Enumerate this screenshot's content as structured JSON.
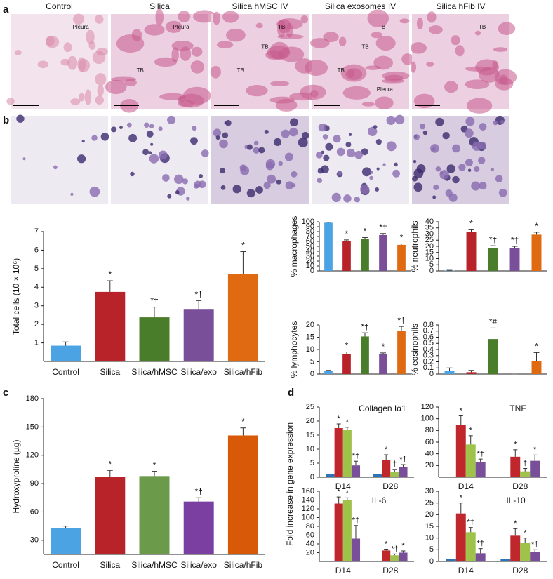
{
  "panel_labels": [
    "a",
    "b",
    "c",
    "d"
  ],
  "histology": [
    {
      "label": "Control",
      "annotations": [
        "Pleura"
      ]
    },
    {
      "label": "Silica",
      "annotations": [
        "Pleura",
        "TB"
      ]
    },
    {
      "label": "Silica hMSC IV",
      "annotations": [
        "TB",
        "TB",
        "TB"
      ]
    },
    {
      "label": "Silica exosomes IV",
      "annotations": [
        "TB",
        "TB",
        "TB",
        "Pleura"
      ]
    },
    {
      "label": "Silica hFib IV",
      "annotations": [
        "TB"
      ]
    }
  ],
  "gene_expression_ylabel": "Fold increase in gene expression",
  "chart_data": [
    {
      "type": "bar",
      "ylabel": "Total cells (10 × 10⁶)",
      "categories": [
        "Control",
        "Silica",
        "Silica/hMSC",
        "Silica/exo",
        "Silica/hFib"
      ],
      "values": [
        0.85,
        3.75,
        2.38,
        2.83,
        4.72
      ],
      "errors": [
        0.2,
        0.6,
        0.55,
        0.45,
        1.2
      ],
      "annotations": [
        "",
        "*",
        "*†",
        "*†",
        "*"
      ],
      "colors": [
        "#4ba3e3",
        "#b8232a",
        "#4a7d2a",
        "#7a4f9a",
        "#e06a12"
      ],
      "ylim": [
        0,
        7
      ],
      "yticks": [
        1,
        2,
        3,
        4,
        5,
        6,
        7
      ]
    },
    {
      "type": "bar",
      "ylabel": "% macrophages",
      "categories": [
        null,
        null,
        null,
        null,
        null
      ],
      "values": [
        98,
        60,
        65,
        73,
        53
      ],
      "errors": [
        1,
        3,
        3,
        3,
        2
      ],
      "annotations": [
        "",
        "*",
        "*",
        "*†",
        "*"
      ],
      "colors": [
        "#4ba3e3",
        "#b8232a",
        "#4a7d2a",
        "#7a4f9a",
        "#e06a12"
      ],
      "ylim": [
        0,
        100
      ],
      "yticks": [
        0,
        10,
        20,
        30,
        40,
        50,
        60,
        70,
        80,
        90,
        100
      ]
    },
    {
      "type": "bar",
      "ylabel": "% neutrophils",
      "categories": [
        null,
        null,
        null,
        null,
        null
      ],
      "values": [
        0.3,
        32,
        18.5,
        18.5,
        29.5
      ],
      "errors": [
        0.2,
        1.5,
        2,
        1.5,
        2
      ],
      "annotations": [
        "",
        "*",
        "*†",
        "*†",
        "*"
      ],
      "colors": [
        "#4ba3e3",
        "#b8232a",
        "#4a7d2a",
        "#7a4f9a",
        "#e06a12"
      ],
      "ylim": [
        0,
        40
      ],
      "yticks": [
        0,
        5,
        10,
        15,
        20,
        25,
        30,
        35,
        40
      ]
    },
    {
      "type": "bar",
      "ylabel": "% lymphocytes",
      "categories": [
        null,
        null,
        null,
        null,
        null
      ],
      "values": [
        1.2,
        8.2,
        15.3,
        8,
        17.6
      ],
      "errors": [
        0.3,
        0.8,
        1.5,
        0.6,
        1.8
      ],
      "annotations": [
        "",
        "*",
        "*†",
        "*",
        "*†"
      ],
      "colors": [
        "#4ba3e3",
        "#b8232a",
        "#4a7d2a",
        "#7a4f9a",
        "#e06a12"
      ],
      "ylim": [
        0,
        20
      ],
      "yticks": [
        0,
        5,
        10,
        15,
        20
      ]
    },
    {
      "type": "bar",
      "ylabel": "% eosinophils",
      "categories": [
        null,
        null,
        null,
        null,
        null
      ],
      "values": [
        0.05,
        0.03,
        0.57,
        0,
        0.21
      ],
      "errors": [
        0.05,
        0.03,
        0.18,
        0,
        0.14
      ],
      "annotations": [
        "",
        "",
        "*#",
        "",
        "*"
      ],
      "colors": [
        "#4ba3e3",
        "#b8232a",
        "#4a7d2a",
        "#7a4f9a",
        "#e06a12"
      ],
      "ylim": [
        0,
        0.8
      ],
      "yticks": [
        0,
        0.1,
        0.2,
        0.3,
        0.4,
        0.5,
        0.6,
        0.7,
        0.8
      ]
    },
    {
      "type": "bar",
      "ylabel": "Hydroxyproline (µg)",
      "categories": [
        "Control",
        "Silica",
        "Silica/hMSC",
        "Silica/exo",
        "Silica/hFib"
      ],
      "values": [
        43,
        97,
        98,
        71,
        141
      ],
      "errors": [
        2,
        7,
        5,
        4,
        8
      ],
      "annotations": [
        "",
        "*",
        "*",
        "*†",
        "*"
      ],
      "colors": [
        "#4ba3e3",
        "#b8232a",
        "#6a9a4a",
        "#7a3fa0",
        "#d85a08"
      ],
      "ylim": [
        15,
        180
      ],
      "yticks": [
        30,
        60,
        90,
        120,
        150,
        180
      ]
    },
    {
      "type": "grouped_bar",
      "title": "Collagen Iα1",
      "categories": [
        "D14",
        "D28"
      ],
      "ylim": [
        0,
        25
      ],
      "yticks": [
        0,
        5,
        10,
        15,
        20,
        25
      ],
      "series": [
        {
          "color": "#2e74b5",
          "values": [
            1,
            1
          ],
          "errors": [
            0,
            0
          ],
          "annotations": [
            "",
            ""
          ]
        },
        {
          "color": "#c0272d",
          "values": [
            17.5,
            6
          ],
          "errors": [
            1.5,
            2
          ],
          "annotations": [
            "*",
            "*"
          ]
        },
        {
          "color": "#9ec24a",
          "values": [
            16.8,
            1.8
          ],
          "errors": [
            1,
            1
          ],
          "annotations": [
            "*",
            "†"
          ]
        },
        {
          "color": "#7a4f9a",
          "values": [
            4.2,
            3.5
          ],
          "errors": [
            1.5,
            1
          ],
          "annotations": [
            "*†",
            "*†"
          ]
        }
      ]
    },
    {
      "type": "grouped_bar",
      "title": "TNF",
      "categories": [
        "D14",
        "D28"
      ],
      "ylim": [
        0,
        120
      ],
      "yticks": [
        20,
        40,
        60,
        80,
        100,
        120
      ],
      "series": [
        {
          "color": "#2e74b5",
          "values": [
            1,
            1
          ],
          "errors": [
            0,
            0
          ],
          "annotations": [
            "",
            ""
          ]
        },
        {
          "color": "#c0272d",
          "values": [
            90,
            35
          ],
          "errors": [
            15,
            12
          ],
          "annotations": [
            "*",
            "*"
          ]
        },
        {
          "color": "#9ec24a",
          "values": [
            56,
            10
          ],
          "errors": [
            15,
            5
          ],
          "annotations": [
            "*",
            "†"
          ]
        },
        {
          "color": "#7a4f9a",
          "values": [
            26,
            28
          ],
          "errors": [
            5,
            10
          ],
          "annotations": [
            "*†",
            "*"
          ]
        }
      ]
    },
    {
      "type": "grouped_bar",
      "title": "IL-6",
      "categories": [
        "D14",
        "D28"
      ],
      "ylim": [
        0,
        160
      ],
      "yticks": [
        20,
        40,
        60,
        80,
        100,
        120,
        140,
        160
      ],
      "series": [
        {
          "color": "#2e74b5",
          "values": [
            1,
            1
          ],
          "errors": [
            0,
            0
          ],
          "annotations": [
            "",
            ""
          ]
        },
        {
          "color": "#c0272d",
          "values": [
            132,
            25
          ],
          "errors": [
            15,
            3
          ],
          "annotations": [
            "*",
            "*"
          ]
        },
        {
          "color": "#9ec24a",
          "values": [
            140,
            14
          ],
          "errors": [
            5,
            3
          ],
          "annotations": [
            "*",
            "*†"
          ]
        },
        {
          "color": "#7a4f9a",
          "values": [
            52,
            20
          ],
          "errors": [
            30,
            4
          ],
          "annotations": [
            "*†",
            "*"
          ]
        }
      ]
    },
    {
      "type": "grouped_bar",
      "title": "IL-10",
      "categories": [
        "D14",
        "D28"
      ],
      "ylim": [
        0,
        30
      ],
      "yticks": [
        0,
        5,
        10,
        15,
        20,
        25,
        30
      ],
      "series": [
        {
          "color": "#2e74b5",
          "values": [
            1,
            1
          ],
          "errors": [
            0,
            0
          ],
          "annotations": [
            "",
            ""
          ]
        },
        {
          "color": "#c0272d",
          "values": [
            20.5,
            11
          ],
          "errors": [
            4.5,
            3
          ],
          "annotations": [
            "*",
            "*"
          ]
        },
        {
          "color": "#9ec24a",
          "values": [
            12.5,
            8
          ],
          "errors": [
            2,
            2
          ],
          "annotations": [
            "*†",
            "*"
          ]
        },
        {
          "color": "#7a4f9a",
          "values": [
            3.5,
            4
          ],
          "errors": [
            2,
            1
          ],
          "annotations": [
            "*†",
            "*†"
          ]
        }
      ]
    }
  ]
}
